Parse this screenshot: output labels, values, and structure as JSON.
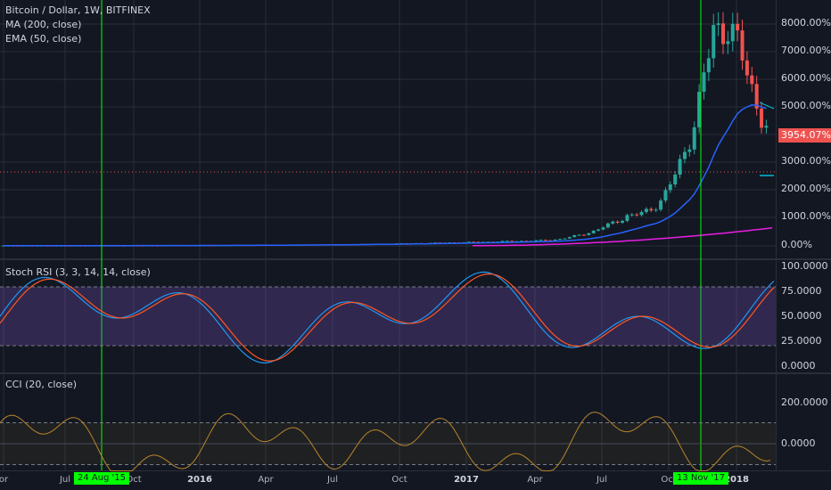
{
  "header": {
    "title": "Bitcoin / Dollar, 1W, BITFINEX",
    "indicators": [
      "MA (200, close)",
      "EMA (50, close)"
    ]
  },
  "panes": {
    "stoch_title": "Stoch RSI (3, 3, 14, 14, close)",
    "cci_title": "CCI (20, close)"
  },
  "price_axis": [
    "8000.00%",
    "7000.00%",
    "6000.00%",
    "5000.00%",
    "4000.00%",
    "3000.00%",
    "2000.00%",
    "1000.00%",
    "0.00%"
  ],
  "last_price_label": "3954.07%",
  "stoch_axis": [
    "100.0000",
    "75.0000",
    "50.0000",
    "25.0000",
    "0.0000"
  ],
  "cci_axis": [
    "200.0000",
    "0.0000"
  ],
  "time_axis": [
    {
      "label": "or",
      "bold": false
    },
    {
      "label": "Jul",
      "bold": false
    },
    {
      "label": "Oct",
      "bold": false
    },
    {
      "label": "2016",
      "bold": true
    },
    {
      "label": "Apr",
      "bold": false
    },
    {
      "label": "Jul",
      "bold": false
    },
    {
      "label": "Oct",
      "bold": false
    },
    {
      "label": "2017",
      "bold": true
    },
    {
      "label": "Apr",
      "bold": false
    },
    {
      "label": "Jul",
      "bold": false
    },
    {
      "label": "Oct",
      "bold": false
    },
    {
      "label": "2018",
      "bold": true
    }
  ],
  "vertical_markers": [
    "24 Aug '15",
    "13 Nov '17"
  ],
  "colors": {
    "background": "#131722",
    "grid": "#2a2e39",
    "bull": "#26a69a",
    "bear": "#ef5350",
    "ma200": "#e91ee3",
    "ema50": "#2962ff",
    "stoch_k": "#2196f3",
    "stoch_d": "#ff5722",
    "stoch_band": "#7e57c2",
    "cci": "#b8862b",
    "marker": "#00ff00"
  }
}
